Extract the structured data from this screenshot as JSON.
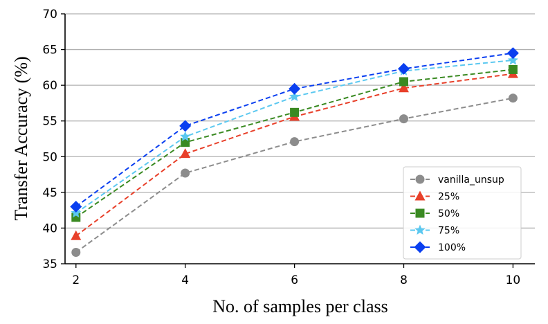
{
  "chart_data": {
    "type": "line",
    "title": "",
    "xlabel": "No. of samples per class",
    "ylabel": "Transfer Accuracy (%)",
    "x": [
      2,
      4,
      6,
      8,
      10
    ],
    "xticks": [
      2,
      4,
      6,
      8,
      10
    ],
    "yticks": [
      35,
      40,
      45,
      50,
      55,
      60,
      65,
      70
    ],
    "xlim": [
      1.8,
      10.4
    ],
    "ylim": [
      35,
      70
    ],
    "grid": "horizontal",
    "legend_position": "lower-right",
    "series": [
      {
        "name": "vanilla_unsup",
        "color": "#8c8c8c",
        "marker": "circle",
        "values": [
          36.6,
          47.7,
          52.1,
          55.3,
          58.2
        ]
      },
      {
        "name": "25%",
        "color": "#e8402a",
        "marker": "triangle",
        "values": [
          38.9,
          50.4,
          55.6,
          59.6,
          61.6
        ]
      },
      {
        "name": "50%",
        "color": "#3a8a22",
        "marker": "square",
        "values": [
          41.5,
          52.0,
          56.2,
          60.5,
          62.2
        ]
      },
      {
        "name": "75%",
        "color": "#5bc8f0",
        "marker": "star",
        "values": [
          42.1,
          52.8,
          58.4,
          62.0,
          63.5
        ]
      },
      {
        "name": "100%",
        "color": "#0a3ff0",
        "marker": "diamond",
        "values": [
          43.0,
          54.3,
          59.5,
          62.3,
          64.5
        ]
      }
    ]
  }
}
